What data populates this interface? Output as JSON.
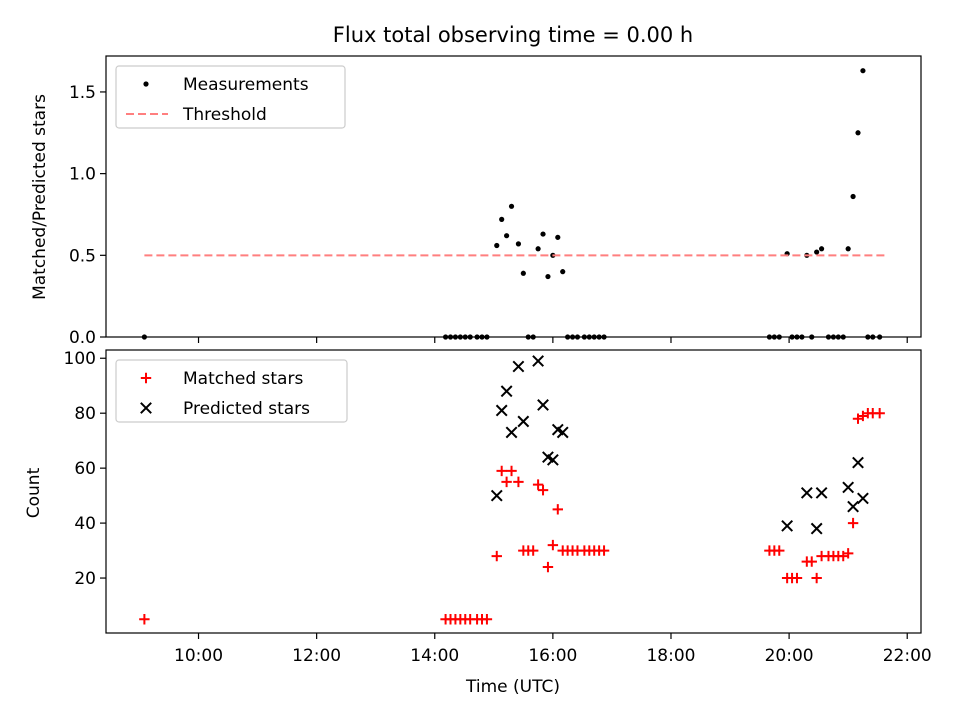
{
  "chart_data": [
    {
      "type": "scatter",
      "title": "Flux total observing time = 0.00 h",
      "ylabel": "Matched/Predicted stars",
      "xlabel": "",
      "xlim": [
        "08:26",
        "22:14"
      ],
      "ylim": [
        0,
        1.72
      ],
      "yticks": [
        0.0,
        0.5,
        1.0,
        1.5
      ],
      "ytick_labels": [
        "0.0",
        "0.5",
        "1.0",
        "1.5"
      ],
      "legend_position": "top-left",
      "grid": false,
      "series": [
        {
          "name": "Measurements",
          "marker": "dot",
          "color": "#000000",
          "points": [
            [
              "09:05",
              0.0
            ],
            [
              "14:11",
              0.0
            ],
            [
              "14:16",
              0.0
            ],
            [
              "14:21",
              0.0
            ],
            [
              "14:26",
              0.0
            ],
            [
              "14:31",
              0.0
            ],
            [
              "14:36",
              0.0
            ],
            [
              "14:43",
              0.0
            ],
            [
              "14:48",
              0.0
            ],
            [
              "14:53",
              0.0
            ],
            [
              "15:03",
              0.56
            ],
            [
              "15:08",
              0.72
            ],
            [
              "15:13",
              0.62
            ],
            [
              "15:18",
              0.8
            ],
            [
              "15:25",
              0.57
            ],
            [
              "15:30",
              0.39
            ],
            [
              "15:35",
              0.0
            ],
            [
              "15:40",
              0.0
            ],
            [
              "15:45",
              0.54
            ],
            [
              "15:50",
              0.63
            ],
            [
              "15:55",
              0.37
            ],
            [
              "16:00",
              0.5
            ],
            [
              "16:05",
              0.61
            ],
            [
              "16:10",
              0.4
            ],
            [
              "16:15",
              0.0
            ],
            [
              "16:20",
              0.0
            ],
            [
              "16:25",
              0.0
            ],
            [
              "16:32",
              0.0
            ],
            [
              "16:37",
              0.0
            ],
            [
              "16:42",
              0.0
            ],
            [
              "16:47",
              0.0
            ],
            [
              "16:52",
              0.0
            ],
            [
              "19:40",
              0.0
            ],
            [
              "19:45",
              0.0
            ],
            [
              "19:50",
              0.0
            ],
            [
              "19:58",
              0.51
            ],
            [
              "20:03",
              0.0
            ],
            [
              "20:08",
              0.0
            ],
            [
              "20:13",
              0.0
            ],
            [
              "20:18",
              0.5
            ],
            [
              "20:23",
              0.0
            ],
            [
              "20:28",
              0.52
            ],
            [
              "20:33",
              0.54
            ],
            [
              "20:40",
              0.0
            ],
            [
              "20:45",
              0.0
            ],
            [
              "20:50",
              0.0
            ],
            [
              "20:55",
              0.0
            ],
            [
              "21:00",
              0.54
            ],
            [
              "21:05",
              0.86
            ],
            [
              "21:10",
              1.25
            ],
            [
              "21:15",
              1.63
            ],
            [
              "21:20",
              0.0
            ],
            [
              "21:25",
              0.0
            ],
            [
              "21:32",
              0.0
            ]
          ]
        },
        {
          "name": "Threshold",
          "marker": "dashed-line",
          "color": "#ff7f7f",
          "points": [
            [
              "09:05",
              0.5
            ],
            [
              "21:37",
              0.5
            ]
          ]
        }
      ]
    },
    {
      "type": "scatter",
      "title": "",
      "ylabel": "Count",
      "xlabel": "Time (UTC)",
      "xlim": [
        "08:26",
        "22:14"
      ],
      "ylim": [
        0,
        103
      ],
      "xticks": [
        "10:00",
        "12:00",
        "14:00",
        "16:00",
        "18:00",
        "20:00",
        "22:00"
      ],
      "yticks": [
        20,
        40,
        60,
        80,
        100
      ],
      "ytick_labels": [
        "20",
        "40",
        "60",
        "80",
        "100"
      ],
      "legend_position": "top-left",
      "grid": false,
      "series": [
        {
          "name": "Matched stars",
          "marker": "plus",
          "color": "#ff0000",
          "points": [
            [
              "09:05",
              5
            ],
            [
              "14:11",
              5
            ],
            [
              "14:16",
              5
            ],
            [
              "14:21",
              5
            ],
            [
              "14:26",
              5
            ],
            [
              "14:31",
              5
            ],
            [
              "14:36",
              5
            ],
            [
              "14:43",
              5
            ],
            [
              "14:48",
              5
            ],
            [
              "14:53",
              5
            ],
            [
              "15:03",
              28
            ],
            [
              "15:08",
              59
            ],
            [
              "15:13",
              55
            ],
            [
              "15:18",
              59
            ],
            [
              "15:25",
              55
            ],
            [
              "15:30",
              30
            ],
            [
              "15:35",
              30
            ],
            [
              "15:40",
              30
            ],
            [
              "15:45",
              54
            ],
            [
              "15:50",
              52
            ],
            [
              "15:55",
              24
            ],
            [
              "16:00",
              32
            ],
            [
              "16:05",
              45
            ],
            [
              "16:10",
              30
            ],
            [
              "16:15",
              30
            ],
            [
              "16:20",
              30
            ],
            [
              "16:25",
              30
            ],
            [
              "16:32",
              30
            ],
            [
              "16:37",
              30
            ],
            [
              "16:42",
              30
            ],
            [
              "16:47",
              30
            ],
            [
              "16:52",
              30
            ],
            [
              "19:40",
              30
            ],
            [
              "19:45",
              30
            ],
            [
              "19:50",
              30
            ],
            [
              "19:58",
              20
            ],
            [
              "20:03",
              20
            ],
            [
              "20:08",
              20
            ],
            [
              "20:18",
              26
            ],
            [
              "20:23",
              26
            ],
            [
              "20:28",
              20
            ],
            [
              "20:33",
              28
            ],
            [
              "20:40",
              28
            ],
            [
              "20:45",
              28
            ],
            [
              "20:50",
              28
            ],
            [
              "20:55",
              28
            ],
            [
              "21:00",
              29
            ],
            [
              "21:05",
              40
            ],
            [
              "21:10",
              78
            ],
            [
              "21:15",
              79
            ],
            [
              "21:20",
              80
            ],
            [
              "21:25",
              80
            ],
            [
              "21:32",
              80
            ]
          ]
        },
        {
          "name": "Predicted stars",
          "marker": "x",
          "color": "#000000",
          "points": [
            [
              "15:03",
              50
            ],
            [
              "15:08",
              81
            ],
            [
              "15:13",
              88
            ],
            [
              "15:18",
              73
            ],
            [
              "15:25",
              97
            ],
            [
              "15:30",
              77
            ],
            [
              "15:45",
              99
            ],
            [
              "15:50",
              83
            ],
            [
              "15:55",
              64
            ],
            [
              "16:00",
              63
            ],
            [
              "16:05",
              74
            ],
            [
              "16:10",
              73
            ],
            [
              "19:58",
              39
            ],
            [
              "20:18",
              51
            ],
            [
              "20:28",
              38
            ],
            [
              "20:33",
              51
            ],
            [
              "21:00",
              53
            ],
            [
              "21:05",
              46
            ],
            [
              "21:10",
              62
            ],
            [
              "21:15",
              49
            ]
          ]
        }
      ]
    }
  ]
}
